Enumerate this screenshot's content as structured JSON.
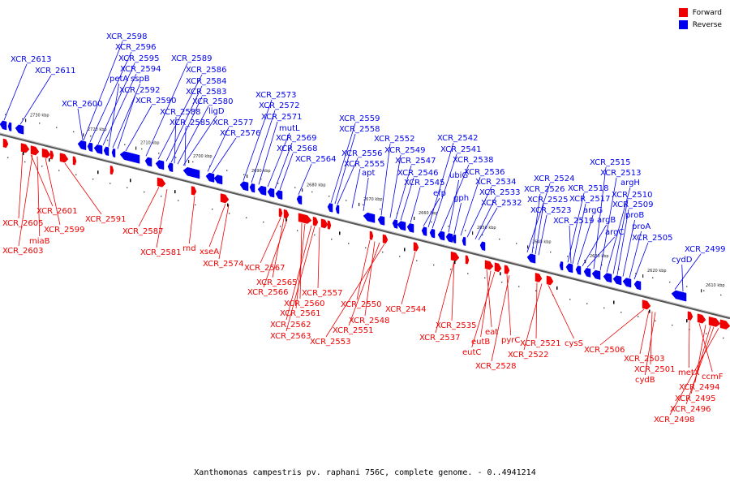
{
  "caption": "Xanthomonas campestris pv. raphani 756C, complete genome. - 0..4941214",
  "legend": [
    {
      "label": "Forward",
      "color": "#ee0000"
    },
    {
      "label": "Reverse",
      "color": "#0000ee"
    }
  ],
  "colors": {
    "forward": "#ee0000",
    "reverse": "#0000ee",
    "axis": "#777777"
  },
  "ticks": [
    "2730 kbp",
    "2720 kbp",
    "2710 kbp",
    "2700 kbp",
    "2690 kbp",
    "2680 kbp",
    "2670 kbp",
    "2660 kbp",
    "2650 kbp",
    "2640 kbp",
    "2630 kbp",
    "2620 kbp",
    "2610 kbp"
  ],
  "reverse_labels": [
    "XCR_2613",
    "XCR_2611",
    "XCR_2600",
    "XCR_2598",
    "XCR_2596",
    "XCR_2595",
    "XCR_2594",
    "petA",
    "sspB",
    "XCR_2592",
    "XCR_2590",
    "XCR_2589",
    "XCR_2586",
    "XCR_2584",
    "XCR_2583",
    "XCR_2580",
    "XCR_2588",
    "ligD",
    "XCR_2585",
    "XCR_2577",
    "XCR_2576",
    "XCR_2573",
    "XCR_2572",
    "XCR_2571",
    "mutL",
    "XCR_2569",
    "XCR_2568",
    "XCR_2564",
    "XCR_2559",
    "XCR_2558",
    "XCR_2556",
    "XCR_2555",
    "apt",
    "XCR_2552",
    "XCR_2549",
    "XCR_2547",
    "XCR_2546",
    "XCR_2545",
    "efp",
    "XCR_2542",
    "XCR_2541",
    "XCR_2538",
    "ubiG",
    "gph",
    "XCR_2536",
    "XCR_2534",
    "XCR_2533",
    "XCR_2532",
    "XCR_2524",
    "XCR_2526",
    "XCR_2525",
    "XCR_2523",
    "XCR_2518",
    "XCR_2517",
    "XCR_2519",
    "argG",
    "argB",
    "argC",
    "XCR_2515",
    "XCR_2513",
    "argH",
    "XCR_2510",
    "XCR_2509",
    "proB",
    "proA",
    "XCR_2505",
    "XCR_2499",
    "cydD"
  ],
  "forward_labels": [
    "XCR_2605",
    "XCR_2601",
    "miaB",
    "XCR_2599",
    "XCR_2603",
    "XCR_2591",
    "XCR_2587",
    "XCR_2581",
    "rnd",
    "xseA",
    "XCR_2574",
    "XCR_2567",
    "XCR_2565",
    "XCR_2566",
    "XCR_2557",
    "XCR_2560",
    "XCR_2561",
    "XCR_2562",
    "XCR_2563",
    "XCR_2550",
    "XCR_2548",
    "XCR_2551",
    "XCR_2553",
    "XCR_2544",
    "XCR_2535",
    "XCR_2537",
    "eat",
    "eutB",
    "eutC",
    "pyrC",
    "XCR_2528",
    "XCR_2521",
    "XCR_2522",
    "cysS",
    "XCR_2506",
    "XCR_2503",
    "XCR_2501",
    "cydB",
    "metX",
    "ccmF",
    "XCR_2494",
    "XCR_2495",
    "XCR_2496",
    "XCR_2498"
  ]
}
